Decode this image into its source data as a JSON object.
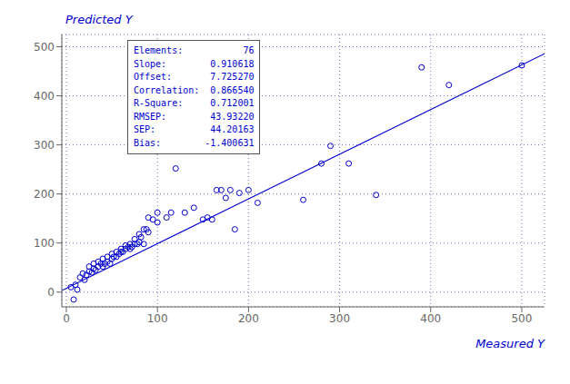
{
  "chart_data": {
    "type": "scatter",
    "x_label": "Measured Y",
    "y_label": "Predicted Y",
    "color": "#0000cc",
    "grid": true,
    "xlim": [
      -5,
      525
    ],
    "ylim": [
      -30,
      525
    ],
    "xticks": [
      0,
      100,
      200,
      300,
      400,
      500
    ],
    "yticks": [
      0,
      100,
      200,
      300,
      400,
      500
    ],
    "annotations": [
      "Elements:           76",
      "Slope:        0.910618",
      "Offset:       7.725270",
      "Correlation:  0.866540",
      "R-Square:     0.712001",
      "RMSEP:        43.93220",
      "SEP:          44.20163",
      "Bias:        -1.400631"
    ],
    "series": [
      {
        "type": "scatter",
        "x": [
          5,
          8,
          10,
          12,
          15,
          18,
          20,
          22,
          25,
          25,
          28,
          30,
          30,
          32,
          35,
          35,
          38,
          40,
          40,
          42,
          45,
          45,
          48,
          50,
          50,
          52,
          55,
          55,
          58,
          60,
          60,
          62,
          65,
          65,
          68,
          70,
          70,
          72,
          75,
          75,
          78,
          80,
          80,
          82,
          85,
          85,
          88,
          90,
          90,
          95,
          100,
          100,
          110,
          115,
          120,
          130,
          140,
          150,
          155,
          160,
          165,
          170,
          175,
          180,
          185,
          190,
          200,
          210,
          260,
          280,
          290,
          310,
          340,
          390,
          420,
          500
        ],
        "values": [
          10,
          -15,
          15,
          5,
          30,
          38,
          25,
          35,
          42,
          52,
          40,
          48,
          58,
          45,
          52,
          62,
          58,
          52,
          68,
          58,
          62,
          72,
          58,
          68,
          78,
          72,
          72,
          82,
          78,
          82,
          88,
          82,
          88,
          95,
          92,
          88,
          98,
          92,
          98,
          108,
          98,
          102,
          118,
          112,
          98,
          128,
          128,
          122,
          152,
          148,
          142,
          162,
          152,
          162,
          252,
          162,
          172,
          148,
          152,
          148,
          208,
          208,
          192,
          208,
          128,
          202,
          208,
          182,
          188,
          262,
          298,
          262,
          198,
          458,
          422,
          462
        ]
      },
      {
        "type": "line",
        "x": [
          -5,
          525
        ],
        "values": [
          3.17218,
          485.79972
        ]
      }
    ]
  }
}
